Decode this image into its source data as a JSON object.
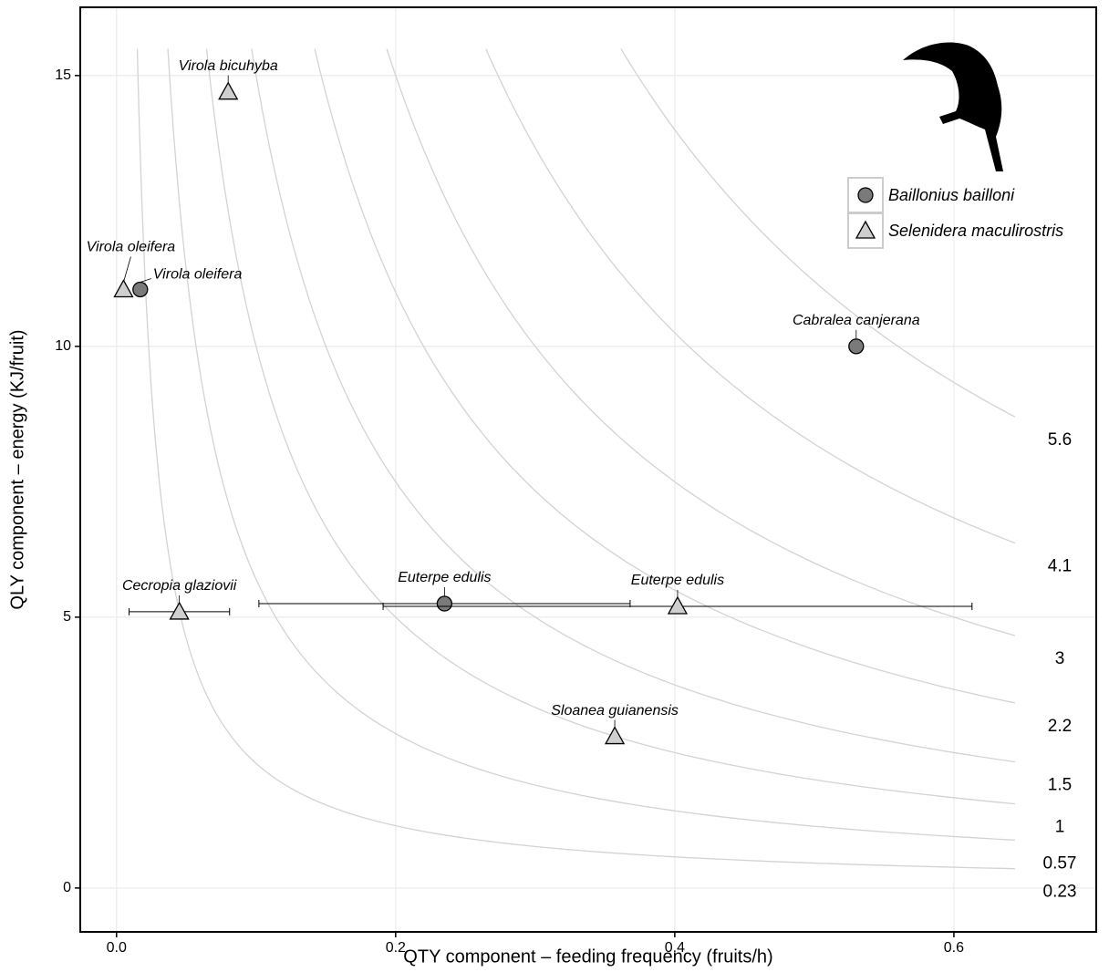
{
  "chart_data": {
    "type": "scatter",
    "x_label": "QTY component – feeding frequency (fruits/h)",
    "y_label": "QLY component – energy (KJ/fruit)",
    "xlim": [
      -0.026,
      0.702
    ],
    "ylim": [
      -0.81,
      16.26
    ],
    "xticks": [
      {
        "value": 0,
        "label": "0.0"
      },
      0.2,
      0.4,
      0.6
    ],
    "yticks": [
      0,
      5,
      10,
      15
    ],
    "grid": true,
    "legend": "top-right",
    "contours": [
      0.23,
      0.57,
      1,
      1.5,
      2.2,
      3,
      4.1,
      5.6
    ],
    "series": [
      {
        "name": "Baillonius bailloni",
        "marker": "circle",
        "color": "#7a7a7a",
        "labels": [
          "Virola oleifera",
          "Cabralea canjerana",
          "Euterpe edulis"
        ],
        "x": [
          0.017,
          0.53,
          0.235
        ],
        "values": [
          11.05,
          10.0,
          5.25
        ],
        "xerr": [
          null,
          null,
          0.133
        ]
      },
      {
        "name": "Selenidera maculirostris",
        "marker": "triangle",
        "color": "#cfcfcf",
        "labels": [
          "Virola bicuhyba",
          "Virola oleifera",
          "Cecropia glaziovii",
          "Euterpe edulis",
          "Sloanea guianensis"
        ],
        "x": [
          0.08,
          0.005,
          0.045,
          0.402,
          0.357
        ],
        "values": [
          14.7,
          11.05,
          5.1,
          5.2,
          2.8
        ],
        "xerr": [
          null,
          null,
          0.036,
          0.211,
          null
        ]
      }
    ]
  }
}
